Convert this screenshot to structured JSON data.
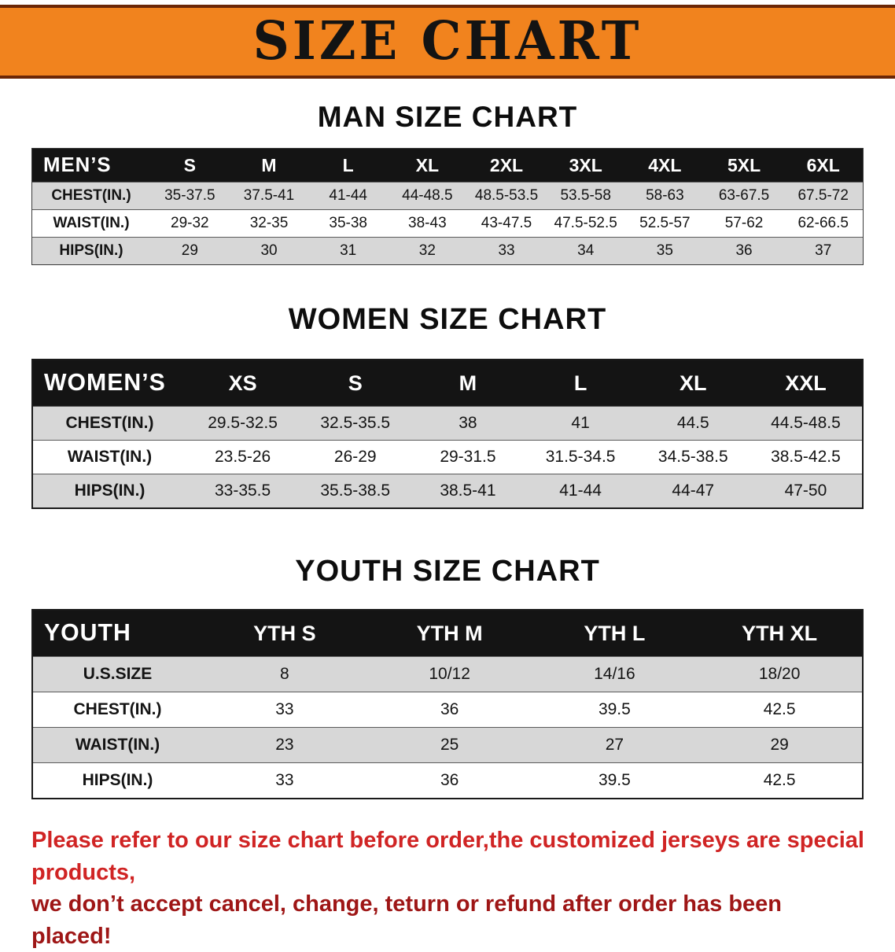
{
  "banner": {
    "title": "SIZE CHART"
  },
  "sections": [
    {
      "heading": "MAN SIZE CHART",
      "table": {
        "header": [
          "MEN’S",
          "S",
          "M",
          "L",
          "XL",
          "2XL",
          "3XL",
          "4XL",
          "5XL",
          "6XL"
        ],
        "rows": [
          [
            "CHEST(IN.)",
            "35-37.5",
            "37.5-41",
            "41-44",
            "44-48.5",
            "48.5-53.5",
            "53.5-58",
            "58-63",
            "63-67.5",
            "67.5-72"
          ],
          [
            "WAIST(IN.)",
            "29-32",
            "32-35",
            "35-38",
            "38-43",
            "43-47.5",
            "47.5-52.5",
            "52.5-57",
            "57-62",
            "62-66.5"
          ],
          [
            "HIPS(IN.)",
            "29",
            "30",
            "31",
            "32",
            "33",
            "34",
            "35",
            "36",
            "37"
          ]
        ]
      }
    },
    {
      "heading": "WOMEN SIZE CHART",
      "table": {
        "header": [
          "WOMEN’S",
          "XS",
          "S",
          "M",
          "L",
          "XL",
          "XXL"
        ],
        "rows": [
          [
            "CHEST(IN.)",
            "29.5-32.5",
            "32.5-35.5",
            "38",
            "41",
            "44.5",
            "44.5-48.5"
          ],
          [
            "WAIST(IN.)",
            "23.5-26",
            "26-29",
            "29-31.5",
            "31.5-34.5",
            "34.5-38.5",
            "38.5-42.5"
          ],
          [
            "HIPS(IN.)",
            "33-35.5",
            "35.5-38.5",
            "38.5-41",
            "41-44",
            "44-47",
            "47-50"
          ]
        ]
      }
    },
    {
      "heading": "YOUTH SIZE CHART",
      "table": {
        "header": [
          "YOUTH",
          "YTH S",
          "YTH M",
          "YTH L",
          "YTH XL"
        ],
        "rows": [
          [
            "U.S.SIZE",
            "8",
            "10/12",
            "14/16",
            "18/20"
          ],
          [
            "CHEST(IN.)",
            "33",
            "36",
            "39.5",
            "42.5"
          ],
          [
            "WAIST(IN.)",
            "23",
            "25",
            "27",
            "29"
          ],
          [
            "HIPS(IN.)",
            "33",
            "36",
            "39.5",
            "42.5"
          ]
        ]
      }
    }
  ],
  "footer": {
    "line1": "Please refer to our size chart before order,the customized jerseys are special products,",
    "line2": "we don’t accept cancel, change, teturn or refund after order has been placed!"
  },
  "colors": {
    "banner_bg": "#f1831e",
    "banner_line": "#6b2606",
    "header_bg": "#141414",
    "row_alt": "#d7d7d7",
    "note_line1": "#d02424",
    "note_line2": "#9e1616"
  }
}
